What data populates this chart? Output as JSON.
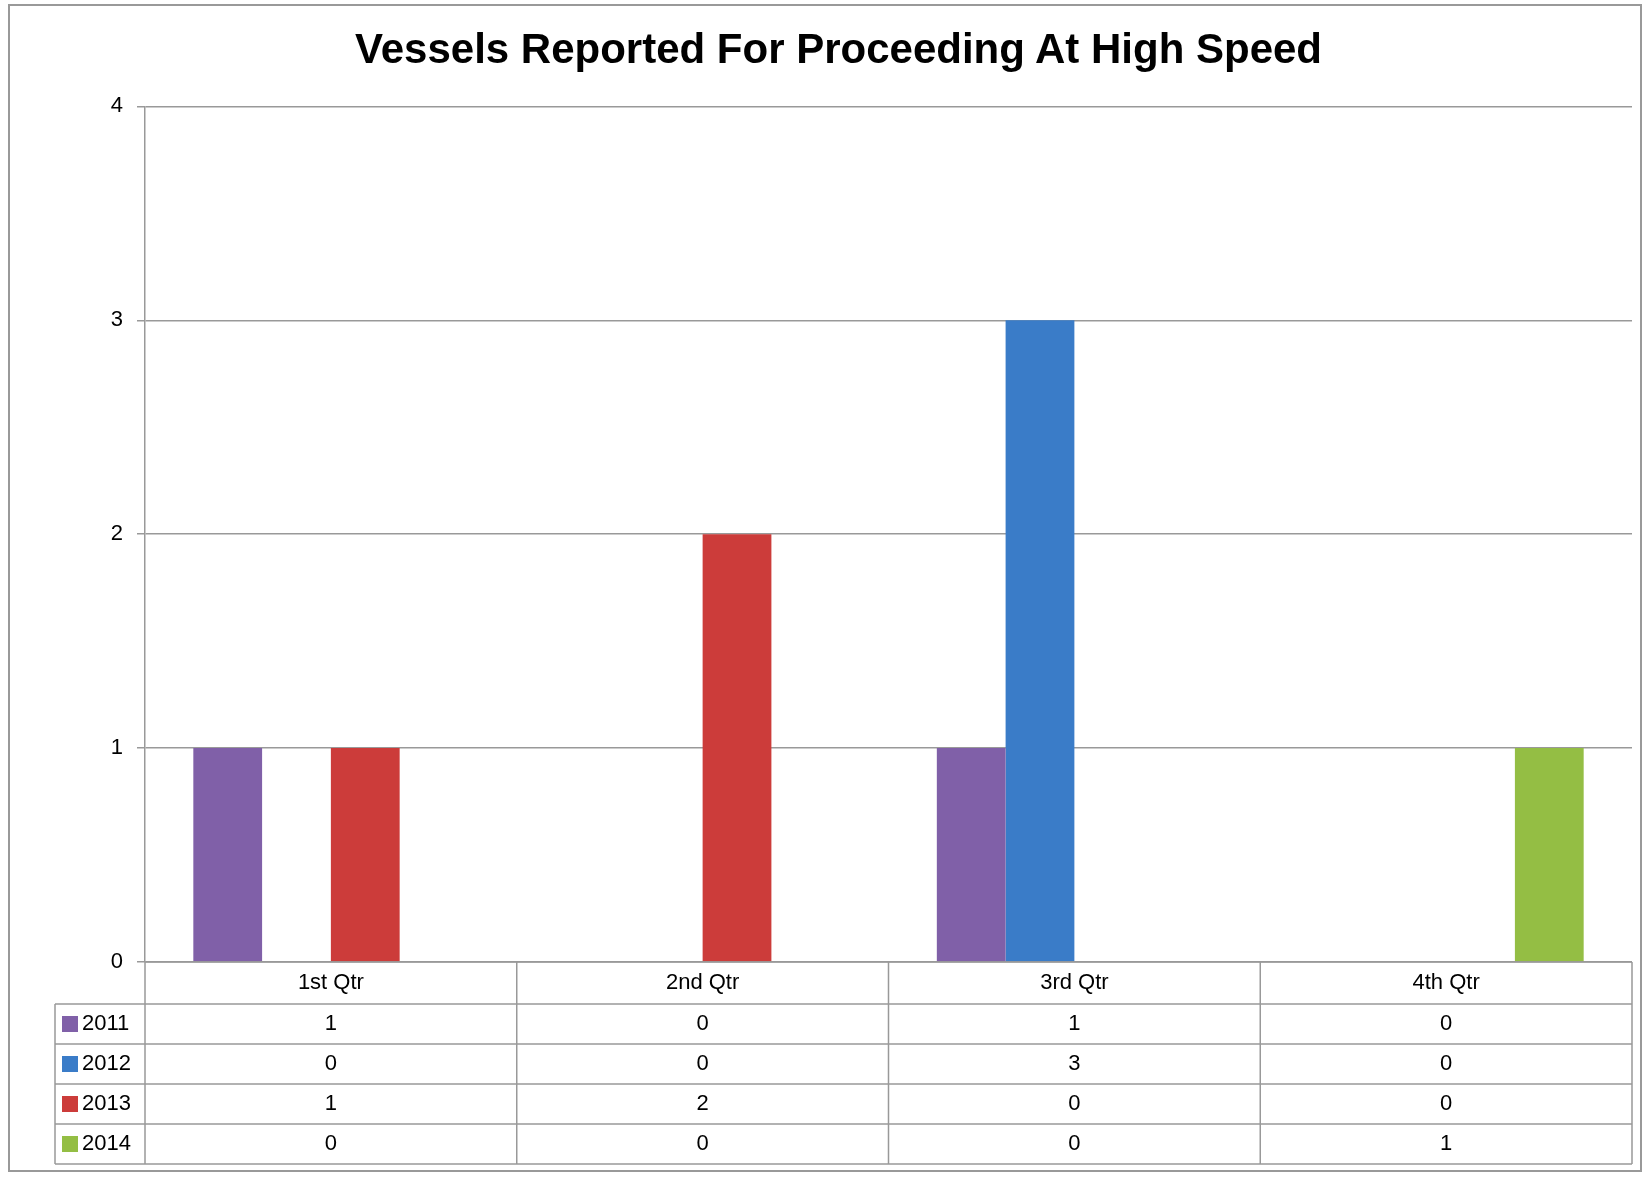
{
  "chart_data": {
    "type": "bar",
    "title": "Vessels Reported For Proceeding At High Speed",
    "categories": [
      "1st Qtr",
      "2nd Qtr",
      "3rd Qtr",
      "4th Qtr"
    ],
    "series": [
      {
        "name": "2011",
        "color": "#8060a8",
        "values": [
          1,
          0,
          1,
          0
        ]
      },
      {
        "name": "2012",
        "color": "#3a7cc8",
        "values": [
          0,
          0,
          3,
          0
        ]
      },
      {
        "name": "2013",
        "color": "#cc3c3a",
        "values": [
          1,
          2,
          0,
          0
        ]
      },
      {
        "name": "2014",
        "color": "#94be44",
        "values": [
          0,
          0,
          0,
          1
        ]
      }
    ],
    "ylim": [
      0,
      4
    ],
    "yticks": [
      0,
      1,
      2,
      3,
      4
    ],
    "grid": "y",
    "legend": "bottom",
    "data_labels": true
  }
}
